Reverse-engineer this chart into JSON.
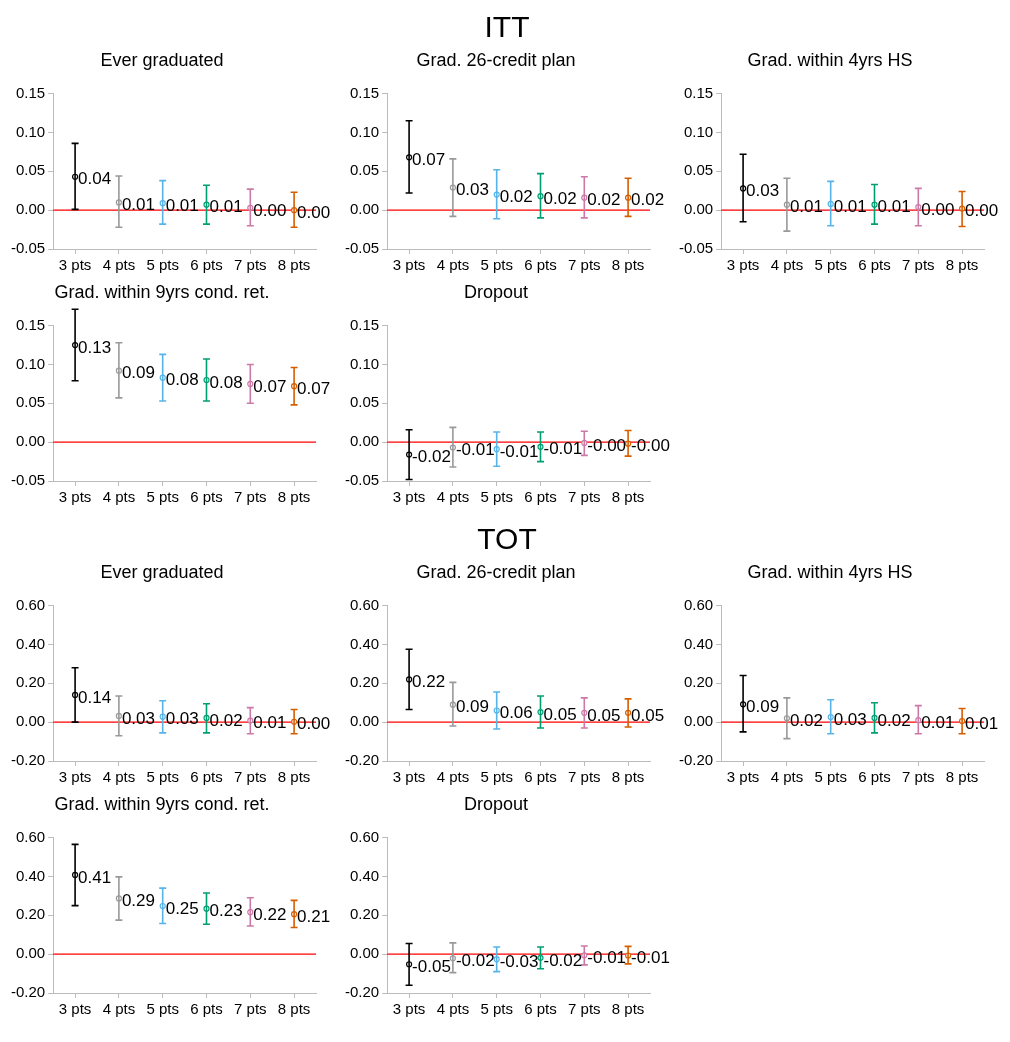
{
  "chart_data": [
    {
      "type": "scatter",
      "title": "Ever graduated",
      "annotations": [
        "ITT"
      ],
      "categories": [
        "3 pts",
        "4 pts",
        "5 pts",
        "6 pts",
        "7 pts",
        "8 pts"
      ],
      "values": [
        0.043,
        0.01,
        0.009,
        0.007,
        0.003,
        0.0
      ],
      "errors": [
        [
          0.001,
          0.086
        ],
        [
          -0.022,
          0.044
        ],
        [
          -0.018,
          0.038
        ],
        [
          -0.018,
          0.032
        ],
        [
          -0.02,
          0.027
        ],
        [
          -0.022,
          0.023
        ]
      ],
      "value_labels": [
        "0.04",
        "0.01",
        "0.01",
        "0.01",
        "0.00",
        "0.00"
      ],
      "colors": [
        "#000000",
        "#999999",
        "#56b4e9",
        "#009e73",
        "#cc79a7",
        "#d55e00"
      ],
      "marker": "circle",
      "ylim": [
        -0.05,
        0.15
      ],
      "yticks": [
        {
          "value": -0.05,
          "label": "-0.05"
        },
        {
          "value": 0,
          "label": "0.00"
        },
        {
          "value": 0.05,
          "label": "0.05"
        },
        {
          "value": 0.1,
          "label": "0.10"
        },
        {
          "value": 0.15,
          "label": "0.15"
        }
      ],
      "ref_lines": [
        {
          "axis": "y",
          "value": 0,
          "color": "#ff0000"
        }
      ],
      "legend": false
    },
    {
      "type": "scatter",
      "title": "Grad. 26-credit plan",
      "categories": [
        "3 pts",
        "4 pts",
        "5 pts",
        "6 pts",
        "7 pts",
        "8 pts"
      ],
      "values": [
        0.068,
        0.029,
        0.02,
        0.018,
        0.016,
        0.016
      ],
      "errors": [
        [
          0.022,
          0.115
        ],
        [
          -0.008,
          0.066
        ],
        [
          -0.011,
          0.052
        ],
        [
          -0.01,
          0.047
        ],
        [
          -0.01,
          0.043
        ],
        [
          -0.008,
          0.041
        ]
      ],
      "value_labels": [
        "0.07",
        "0.03",
        "0.02",
        "0.02",
        "0.02",
        "0.02"
      ],
      "colors": [
        "#000000",
        "#999999",
        "#56b4e9",
        "#009e73",
        "#cc79a7",
        "#d55e00"
      ],
      "marker": "circle",
      "ylim": [
        -0.05,
        0.15
      ],
      "yticks": [
        {
          "value": -0.05,
          "label": "-0.05"
        },
        {
          "value": 0,
          "label": "0.00"
        },
        {
          "value": 0.05,
          "label": "0.05"
        },
        {
          "value": 0.1,
          "label": "0.10"
        },
        {
          "value": 0.15,
          "label": "0.15"
        }
      ],
      "ref_lines": [
        {
          "axis": "y",
          "value": 0,
          "color": "#ff0000"
        }
      ],
      "legend": false
    },
    {
      "type": "scatter",
      "title": "Grad. within 4yrs HS",
      "categories": [
        "3 pts",
        "4 pts",
        "5 pts",
        "6 pts",
        "7 pts",
        "8 pts"
      ],
      "values": [
        0.028,
        0.007,
        0.008,
        0.007,
        0.004,
        0.002
      ],
      "errors": [
        [
          -0.015,
          0.072
        ],
        [
          -0.027,
          0.041
        ],
        [
          -0.02,
          0.037
        ],
        [
          -0.018,
          0.033
        ],
        [
          -0.02,
          0.028
        ],
        [
          -0.021,
          0.024
        ]
      ],
      "value_labels": [
        "0.03",
        "0.01",
        "0.01",
        "0.01",
        "0.00",
        "0.00"
      ],
      "colors": [
        "#000000",
        "#999999",
        "#56b4e9",
        "#009e73",
        "#cc79a7",
        "#d55e00"
      ],
      "marker": "circle",
      "ylim": [
        -0.05,
        0.15
      ],
      "yticks": [
        {
          "value": -0.05,
          "label": "-0.05"
        },
        {
          "value": 0,
          "label": "0.00"
        },
        {
          "value": 0.05,
          "label": "0.05"
        },
        {
          "value": 0.1,
          "label": "0.10"
        },
        {
          "value": 0.15,
          "label": "0.15"
        }
      ],
      "ref_lines": [
        {
          "axis": "y",
          "value": 0,
          "color": "#ff0000"
        }
      ],
      "legend": false
    },
    {
      "type": "scatter",
      "title": "Grad. within 9yrs cond. ret.",
      "categories": [
        "3 pts",
        "4 pts",
        "5 pts",
        "6 pts",
        "7 pts",
        "8 pts"
      ],
      "values": [
        0.125,
        0.092,
        0.083,
        0.08,
        0.075,
        0.072
      ],
      "errors": [
        [
          0.079,
          0.171
        ],
        [
          0.057,
          0.128
        ],
        [
          0.053,
          0.113
        ],
        [
          0.053,
          0.107
        ],
        [
          0.05,
          0.1
        ],
        [
          0.048,
          0.096
        ]
      ],
      "value_labels": [
        "0.13",
        "0.09",
        "0.08",
        "0.08",
        "0.07",
        "0.07"
      ],
      "colors": [
        "#000000",
        "#999999",
        "#56b4e9",
        "#009e73",
        "#cc79a7",
        "#d55e00"
      ],
      "marker": "circle",
      "ylim": [
        -0.05,
        0.15
      ],
      "yticks": [
        {
          "value": -0.05,
          "label": "-0.05"
        },
        {
          "value": 0,
          "label": "0.00"
        },
        {
          "value": 0.05,
          "label": "0.05"
        },
        {
          "value": 0.1,
          "label": "0.10"
        },
        {
          "value": 0.15,
          "label": "0.15"
        }
      ],
      "ref_lines": [
        {
          "axis": "y",
          "value": 0,
          "color": "#ff0000"
        }
      ],
      "legend": false
    },
    {
      "type": "scatter",
      "title": "Dropout",
      "categories": [
        "3 pts",
        "4 pts",
        "5 pts",
        "6 pts",
        "7 pts",
        "8 pts"
      ],
      "values": [
        -0.016,
        -0.007,
        -0.009,
        -0.006,
        -0.001,
        -0.002
      ],
      "errors": [
        [
          -0.048,
          0.016
        ],
        [
          -0.032,
          0.019
        ],
        [
          -0.031,
          0.013
        ],
        [
          -0.025,
          0.013
        ],
        [
          -0.017,
          0.014
        ],
        [
          -0.018,
          0.015
        ]
      ],
      "value_labels": [
        "-0.02",
        "-0.01",
        "-0.01",
        "-0.01",
        "-0.00",
        "-0.00"
      ],
      "colors": [
        "#000000",
        "#999999",
        "#56b4e9",
        "#009e73",
        "#cc79a7",
        "#d55e00"
      ],
      "marker": "circle",
      "ylim": [
        -0.05,
        0.15
      ],
      "yticks": [
        {
          "value": -0.05,
          "label": "-0.05"
        },
        {
          "value": 0,
          "label": "0.00"
        },
        {
          "value": 0.05,
          "label": "0.05"
        },
        {
          "value": 0.1,
          "label": "0.10"
        },
        {
          "value": 0.15,
          "label": "0.15"
        }
      ],
      "ref_lines": [
        {
          "axis": "y",
          "value": 0,
          "color": "#ff0000"
        }
      ],
      "legend": false
    },
    {
      "type": "scatter",
      "title": "Ever graduated",
      "annotations": [
        "TOT"
      ],
      "categories": [
        "3 pts",
        "4 pts",
        "5 pts",
        "6 pts",
        "7 pts",
        "8 pts"
      ],
      "values": [
        0.14,
        0.032,
        0.028,
        0.022,
        0.008,
        0.002
      ],
      "errors": [
        [
          0.0,
          0.28
        ],
        [
          -0.07,
          0.135
        ],
        [
          -0.055,
          0.11
        ],
        [
          -0.055,
          0.095
        ],
        [
          -0.06,
          0.075
        ],
        [
          -0.06,
          0.065
        ]
      ],
      "value_labels": [
        "0.14",
        "0.03",
        "0.03",
        "0.02",
        "0.01",
        "0.00"
      ],
      "colors": [
        "#000000",
        "#999999",
        "#56b4e9",
        "#009e73",
        "#cc79a7",
        "#d55e00"
      ],
      "marker": "circle",
      "ylim": [
        -0.2,
        0.6
      ],
      "yticks": [
        {
          "value": -0.2,
          "label": "-0.20"
        },
        {
          "value": 0,
          "label": "0.00"
        },
        {
          "value": 0.2,
          "label": "0.20"
        },
        {
          "value": 0.4,
          "label": "0.40"
        },
        {
          "value": 0.6,
          "label": "0.60"
        }
      ],
      "ref_lines": [
        {
          "axis": "y",
          "value": 0,
          "color": "#ff0000"
        }
      ],
      "legend": false
    },
    {
      "type": "scatter",
      "title": "Grad. 26-credit plan",
      "categories": [
        "3 pts",
        "4 pts",
        "5 pts",
        "6 pts",
        "7 pts",
        "8 pts"
      ],
      "values": [
        0.22,
        0.09,
        0.06,
        0.052,
        0.048,
        0.048
      ],
      "errors": [
        [
          0.065,
          0.375
        ],
        [
          -0.02,
          0.205
        ],
        [
          -0.035,
          0.155
        ],
        [
          -0.03,
          0.135
        ],
        [
          -0.03,
          0.125
        ],
        [
          -0.025,
          0.12
        ]
      ],
      "value_labels": [
        "0.22",
        "0.09",
        "0.06",
        "0.05",
        "0.05",
        "0.05"
      ],
      "colors": [
        "#000000",
        "#999999",
        "#56b4e9",
        "#009e73",
        "#cc79a7",
        "#d55e00"
      ],
      "marker": "circle",
      "ylim": [
        -0.2,
        0.6
      ],
      "yticks": [
        {
          "value": -0.2,
          "label": "-0.20"
        },
        {
          "value": 0,
          "label": "0.00"
        },
        {
          "value": 0.2,
          "label": "0.20"
        },
        {
          "value": 0.4,
          "label": "0.40"
        },
        {
          "value": 0.6,
          "label": "0.60"
        }
      ],
      "ref_lines": [
        {
          "axis": "y",
          "value": 0,
          "color": "#ff0000"
        }
      ],
      "legend": false
    },
    {
      "type": "scatter",
      "title": "Grad. within 4yrs HS",
      "categories": [
        "3 pts",
        "4 pts",
        "5 pts",
        "6 pts",
        "7 pts",
        "8 pts"
      ],
      "values": [
        0.092,
        0.02,
        0.026,
        0.022,
        0.01,
        0.006
      ],
      "errors": [
        [
          -0.05,
          0.24
        ],
        [
          -0.085,
          0.125
        ],
        [
          -0.06,
          0.115
        ],
        [
          -0.055,
          0.1
        ],
        [
          -0.06,
          0.085
        ],
        [
          -0.06,
          0.07
        ]
      ],
      "value_labels": [
        "0.09",
        "0.02",
        "0.03",
        "0.02",
        "0.01",
        "0.01"
      ],
      "colors": [
        "#000000",
        "#999999",
        "#56b4e9",
        "#009e73",
        "#cc79a7",
        "#d55e00"
      ],
      "marker": "circle",
      "ylim": [
        -0.2,
        0.6
      ],
      "yticks": [
        {
          "value": -0.2,
          "label": "-0.20"
        },
        {
          "value": 0,
          "label": "0.00"
        },
        {
          "value": 0.2,
          "label": "0.20"
        },
        {
          "value": 0.4,
          "label": "0.40"
        },
        {
          "value": 0.6,
          "label": "0.60"
        }
      ],
      "ref_lines": [
        {
          "axis": "y",
          "value": 0,
          "color": "#ff0000"
        }
      ],
      "legend": false
    },
    {
      "type": "scatter",
      "title": "Grad. within 9yrs cond. ret.",
      "categories": [
        "3 pts",
        "4 pts",
        "5 pts",
        "6 pts",
        "7 pts",
        "8 pts"
      ],
      "values": [
        0.408,
        0.287,
        0.248,
        0.234,
        0.216,
        0.206
      ],
      "errors": [
        [
          0.25,
          0.565
        ],
        [
          0.175,
          0.398
        ],
        [
          0.158,
          0.34
        ],
        [
          0.154,
          0.315
        ],
        [
          0.145,
          0.29
        ],
        [
          0.137,
          0.277
        ]
      ],
      "value_labels": [
        "0.41",
        "0.29",
        "0.25",
        "0.23",
        "0.22",
        "0.21"
      ],
      "colors": [
        "#000000",
        "#999999",
        "#56b4e9",
        "#009e73",
        "#cc79a7",
        "#d55e00"
      ],
      "marker": "circle",
      "ylim": [
        -0.2,
        0.6
      ],
      "yticks": [
        {
          "value": -0.2,
          "label": "-0.20"
        },
        {
          "value": 0,
          "label": "0.00"
        },
        {
          "value": 0.2,
          "label": "0.20"
        },
        {
          "value": 0.4,
          "label": "0.40"
        },
        {
          "value": 0.6,
          "label": "0.60"
        }
      ],
      "ref_lines": [
        {
          "axis": "y",
          "value": 0,
          "color": "#ff0000"
        }
      ],
      "legend": false
    },
    {
      "type": "scatter",
      "title": "Dropout",
      "categories": [
        "3 pts",
        "4 pts",
        "5 pts",
        "6 pts",
        "7 pts",
        "8 pts"
      ],
      "values": [
        -0.052,
        -0.021,
        -0.026,
        -0.019,
        -0.006,
        -0.007
      ],
      "errors": [
        [
          -0.16,
          0.055
        ],
        [
          -0.095,
          0.058
        ],
        [
          -0.09,
          0.037
        ],
        [
          -0.075,
          0.037
        ],
        [
          -0.055,
          0.042
        ],
        [
          -0.05,
          0.04
        ]
      ],
      "value_labels": [
        "-0.05",
        "-0.02",
        "-0.03",
        "-0.02",
        "-0.01",
        "-0.01"
      ],
      "colors": [
        "#000000",
        "#999999",
        "#56b4e9",
        "#009e73",
        "#cc79a7",
        "#d55e00"
      ],
      "marker": "circle",
      "ylim": [
        -0.2,
        0.6
      ],
      "yticks": [
        {
          "value": -0.2,
          "label": "-0.20"
        },
        {
          "value": 0,
          "label": "0.00"
        },
        {
          "value": 0.2,
          "label": "0.20"
        },
        {
          "value": 0.4,
          "label": "0.40"
        },
        {
          "value": 0.6,
          "label": "0.60"
        }
      ],
      "ref_lines": [
        {
          "axis": "y",
          "value": 0,
          "color": "#ff0000"
        }
      ],
      "legend": false
    }
  ]
}
